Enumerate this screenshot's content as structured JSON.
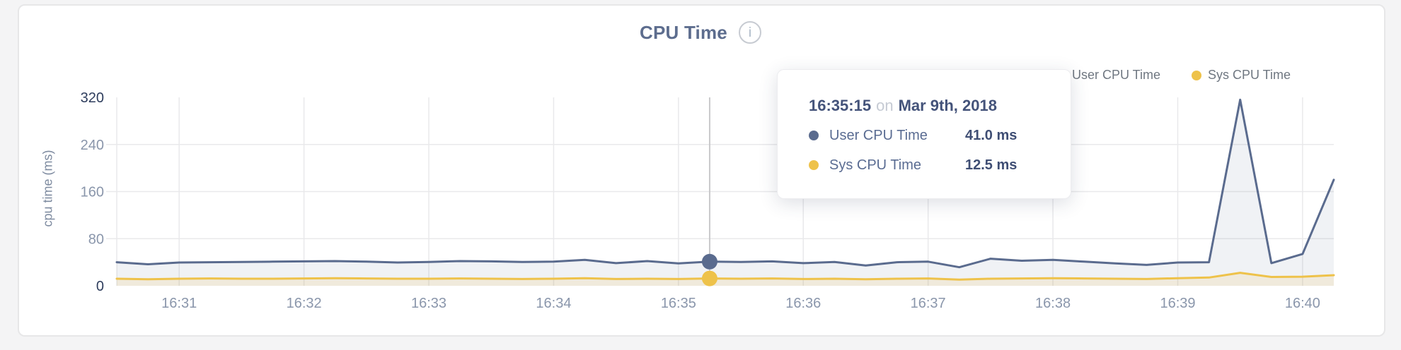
{
  "header": {
    "title": "CPU Time",
    "info_glyph": "i"
  },
  "axes": {
    "ylabel": "cpu time (ms)",
    "x_tick_labels": [
      "16:31",
      "16:32",
      "16:33",
      "16:34",
      "16:35",
      "16:36",
      "16:37",
      "16:38",
      "16:39",
      "16:40"
    ],
    "y_tick_labels": [
      "0",
      "80",
      "160",
      "240",
      "320"
    ]
  },
  "tooltip": {
    "time": "16:35:15",
    "conjunction": "on",
    "date": "Mar 9th, 2018",
    "rows": [
      {
        "label": "User CPU Time",
        "value": "41.0 ms"
      },
      {
        "label": "Sys CPU Time",
        "value": "12.5 ms"
      }
    ]
  },
  "chart_data": {
    "type": "line",
    "title": "CPU Time",
    "xlabel": "",
    "ylabel": "cpu time (ms)",
    "ylim": [
      0,
      320
    ],
    "y_ticks": [
      0,
      80,
      160,
      240,
      320
    ],
    "x_ticks": [
      "16:31",
      "16:32",
      "16:33",
      "16:34",
      "16:35",
      "16:36",
      "16:37",
      "16:38",
      "16:39",
      "16:40"
    ],
    "x_start": "16:30:30",
    "x_end": "16:40:15",
    "x_interval_seconds": 15,
    "grid": true,
    "legend_position": "top-right",
    "series": [
      {
        "name": "User CPU Time",
        "color": "#5a6b8e",
        "fill": "rgba(90,107,142,0.09)",
        "values": [
          40,
          36.5,
          39.5,
          40,
          40.5,
          41,
          41.5,
          42,
          41,
          39.5,
          40.5,
          42,
          41.5,
          40.5,
          41,
          44,
          38.5,
          42,
          38,
          41,
          40.5,
          41.5,
          38.5,
          40.5,
          34.5,
          40,
          41,
          31.5,
          46,
          42.5,
          44,
          41,
          38,
          35.5,
          39.5,
          40,
          316,
          38.5,
          54,
          180
        ]
      },
      {
        "name": "Sys CPU Time",
        "color": "#eec24a",
        "fill": "rgba(238,194,74,0.14)",
        "values": [
          12,
          11,
          12,
          12.5,
          12,
          12,
          12.5,
          13,
          12.5,
          12,
          12,
          12.5,
          12,
          11.5,
          12,
          13,
          11.5,
          12,
          11.5,
          12.5,
          12,
          12.5,
          11.5,
          12,
          11,
          12,
          12.5,
          10.5,
          12,
          12.5,
          13,
          12.5,
          12,
          11.5,
          13,
          14,
          22,
          15,
          15.5,
          18
        ]
      }
    ],
    "selected": {
      "index": 19,
      "time": "16:35:15",
      "user_value_ms": 41.0,
      "sys_value_ms": 12.5
    }
  },
  "style": {
    "accent_navy": "#5a6b8e",
    "accent_gold": "#eec24a",
    "tick_color": "#8a96ab",
    "tick_emphasis_color": "#2e3d5d",
    "gridline_color": "#e9e9eb",
    "crosshair_color": "#c9c9cb"
  }
}
